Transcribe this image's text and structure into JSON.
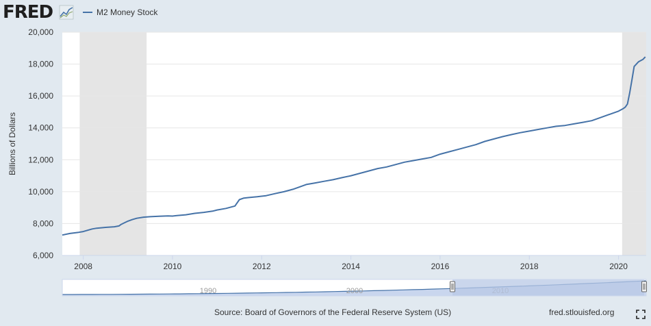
{
  "header": {
    "logo": "FRED",
    "legend_label": "M2 Money Stock"
  },
  "colors": {
    "series": "#4572a7",
    "background": "#e1e9f0",
    "plot_bg": "#ffffff",
    "recession": "#e5e5e5",
    "navigator_fill": "#b8c8e6"
  },
  "footer": {
    "source": "Source: Board of Governors of the Federal Reserve System (US)",
    "site": "fred.stlouisfed.org"
  },
  "icons": {
    "logo_graph": "line-chart-icon",
    "fullscreen": "fullscreen-icon"
  },
  "chart_data": {
    "type": "line",
    "title": "",
    "xlabel": "",
    "ylabel": "Billions of Dollars",
    "xlim": [
      2007.53,
      2020.62
    ],
    "ylim": [
      6000,
      20000
    ],
    "x_ticks": [
      2008,
      2010,
      2012,
      2014,
      2016,
      2018,
      2020
    ],
    "y_ticks": [
      6000,
      8000,
      10000,
      12000,
      14000,
      16000,
      18000,
      20000
    ],
    "y_tick_labels": [
      "6,000",
      "8,000",
      "10,000",
      "12,000",
      "14,000",
      "16,000",
      "18,000",
      "20,000"
    ],
    "grid": "horizontal",
    "legend": "top-left",
    "recessions": [
      [
        2007.92,
        2009.42
      ],
      [
        2020.08,
        2020.62
      ]
    ],
    "series": [
      {
        "name": "M2 Money Stock",
        "x": [
          2007.53,
          2007.7,
          2007.9,
          2008.0,
          2008.1,
          2008.2,
          2008.3,
          2008.5,
          2008.7,
          2008.8,
          2008.85,
          2009.0,
          2009.1,
          2009.2,
          2009.35,
          2009.5,
          2009.7,
          2009.9,
          2010.0,
          2010.1,
          2010.3,
          2010.5,
          2010.7,
          2010.9,
          2011.0,
          2011.2,
          2011.4,
          2011.5,
          2011.6,
          2011.7,
          2011.9,
          2012.1,
          2012.3,
          2012.5,
          2012.7,
          2012.85,
          2013.0,
          2013.2,
          2013.4,
          2013.6,
          2013.8,
          2014.0,
          2014.2,
          2014.4,
          2014.6,
          2014.8,
          2015.0,
          2015.2,
          2015.4,
          2015.6,
          2015.8,
          2016.0,
          2016.2,
          2016.4,
          2016.6,
          2016.8,
          2017.0,
          2017.2,
          2017.4,
          2017.6,
          2017.8,
          2018.0,
          2018.2,
          2018.4,
          2018.6,
          2018.8,
          2019.0,
          2019.2,
          2019.4,
          2019.6,
          2019.8,
          2020.0,
          2020.1,
          2020.15,
          2020.2,
          2020.25,
          2020.3,
          2020.35,
          2020.45,
          2020.55,
          2020.6
        ],
        "values": [
          7280,
          7380,
          7450,
          7500,
          7580,
          7660,
          7710,
          7760,
          7800,
          7850,
          7950,
          8150,
          8250,
          8330,
          8400,
          8430,
          8460,
          8480,
          8470,
          8500,
          8550,
          8640,
          8700,
          8780,
          8850,
          8950,
          9100,
          9500,
          9600,
          9630,
          9680,
          9750,
          9880,
          10000,
          10150,
          10300,
          10450,
          10550,
          10650,
          10750,
          10880,
          11000,
          11150,
          11300,
          11450,
          11550,
          11700,
          11850,
          11950,
          12050,
          12150,
          12350,
          12500,
          12650,
          12800,
          12950,
          13150,
          13300,
          13450,
          13580,
          13700,
          13800,
          13900,
          14000,
          14100,
          14150,
          14250,
          14350,
          14450,
          14650,
          14850,
          15050,
          15200,
          15300,
          15500,
          16200,
          17000,
          17850,
          18150,
          18300,
          18450
        ]
      }
    ],
    "navigator": {
      "x_ticks": [
        1990,
        2000,
        2010
      ]
    }
  }
}
